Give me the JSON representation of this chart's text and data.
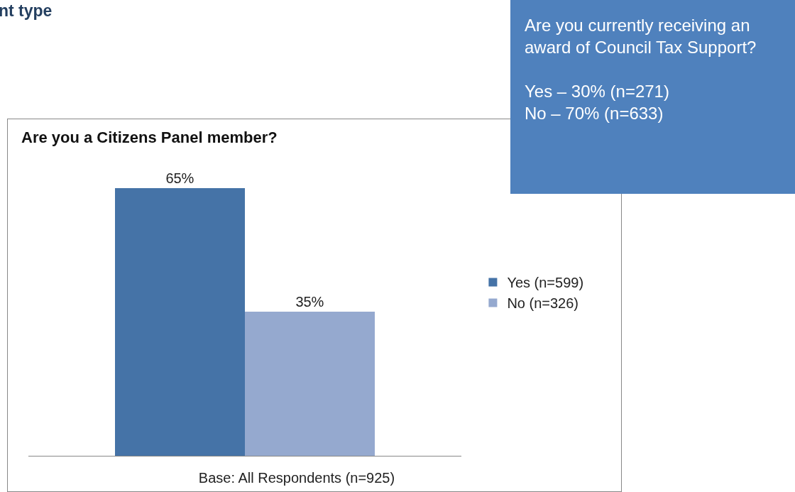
{
  "chart_data": {
    "type": "bar",
    "title": "Are you a Citizens Panel member?",
    "categories": [
      null
    ],
    "series": [
      {
        "name": "Yes (n=599)",
        "color": "#4573a7",
        "values": [
          65
        ],
        "value_labels": [
          "65%"
        ]
      },
      {
        "name": "No (n=326)",
        "color": "#95a9cf",
        "values": [
          35
        ],
        "value_labels": [
          "35%"
        ]
      }
    ],
    "legend": "right",
    "annotations": [
      "nt type",
      "Are you currently receiving an award of Council Tax Support?\n\nYes – 30% (n=271)\nNo – 70% (n=633)",
      "Base: All Respondents (n=925)"
    ]
  }
}
